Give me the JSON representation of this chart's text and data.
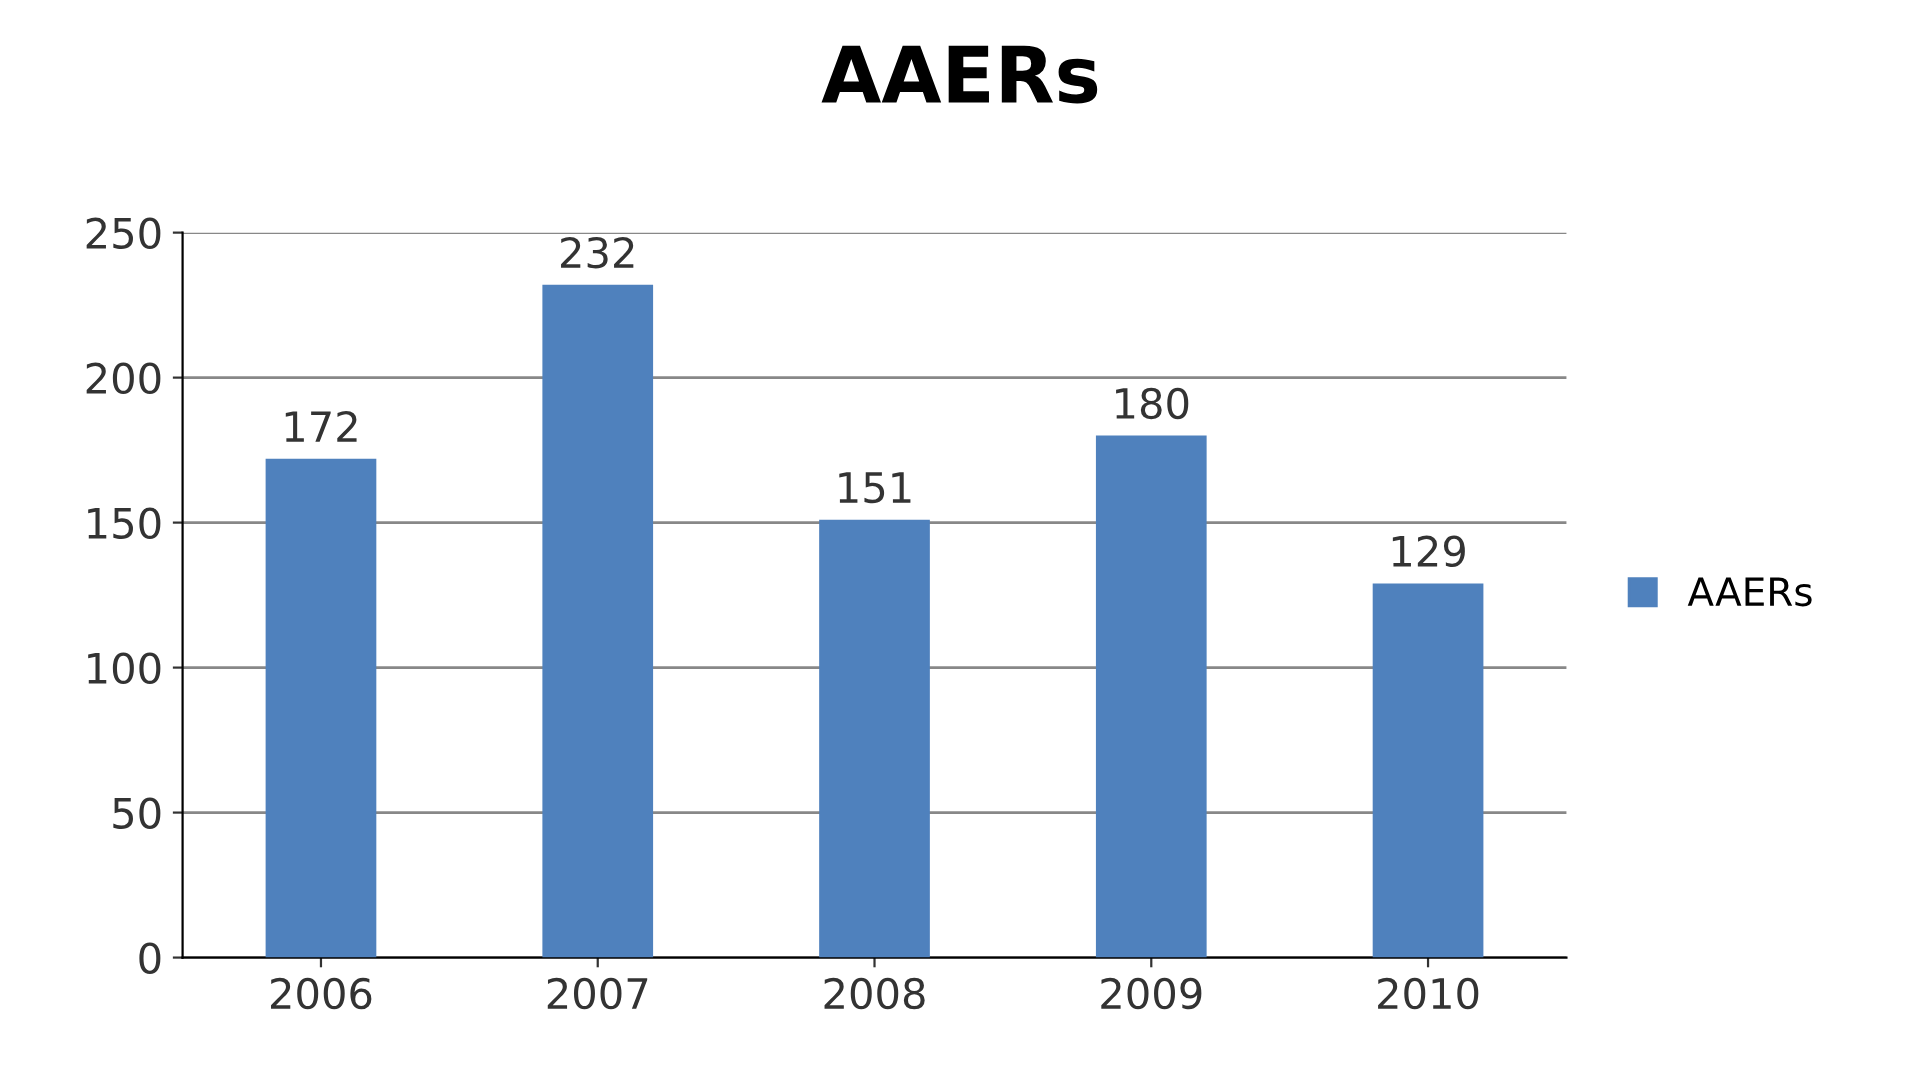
{
  "chart_data": {
    "type": "bar",
    "title": "AAERs",
    "categories": [
      "2006",
      "2007",
      "2008",
      "2009",
      "2010"
    ],
    "series": [
      {
        "name": "AAERs",
        "color": "#4f81bd",
        "values": [
          172,
          232,
          151,
          180,
          129
        ]
      }
    ],
    "ylim": [
      0,
      250
    ],
    "yticks": [
      0,
      50,
      100,
      150,
      200,
      250
    ],
    "grid": "y",
    "legend": "right",
    "data_labels": true
  }
}
